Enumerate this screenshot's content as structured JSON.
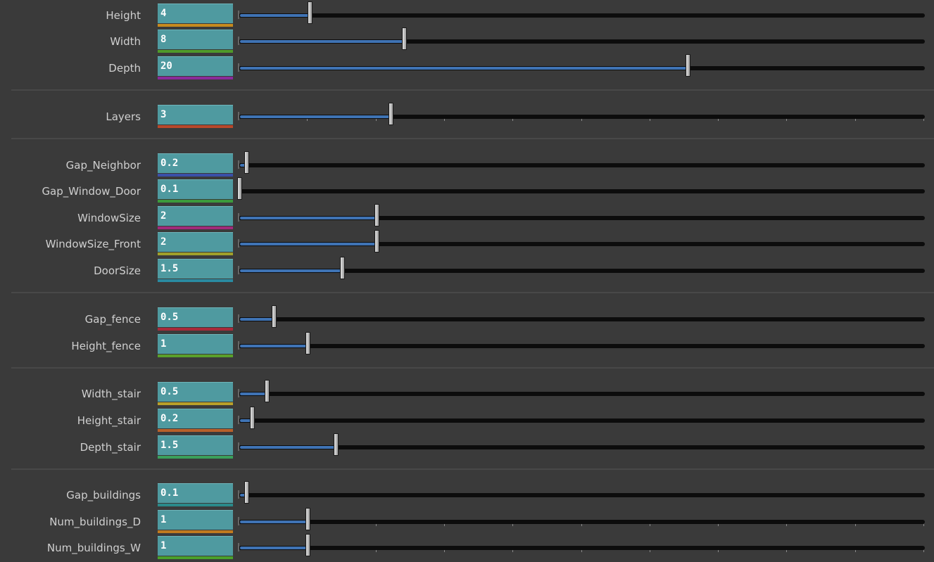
{
  "parameters": [
    {
      "label": "Height",
      "value": "4",
      "fraction": 0.105,
      "underline": "#c78a1e",
      "ticks": false
    },
    {
      "label": "Width",
      "value": "8",
      "fraction": 0.242,
      "underline": "#4f9a2a",
      "ticks": false
    },
    {
      "label": "Depth",
      "value": "20",
      "fraction": 0.655,
      "underline": "#8a2a9a",
      "ticks": false
    },
    {
      "label": "Layers",
      "value": "3",
      "fraction": 0.223,
      "underline": "#b8482a",
      "ticks": true
    },
    {
      "label": "Gap_Neighbor",
      "value": "0.2",
      "fraction": 0.012,
      "underline": "#3a4fa8",
      "ticks": false
    },
    {
      "label": "Gap_Window_Door",
      "value": "0.1",
      "fraction": 0.002,
      "underline": "#3c9a3c",
      "ticks": false
    },
    {
      "label": "WindowSize",
      "value": "2",
      "fraction": 0.202,
      "underline": "#a02a7a",
      "ticks": false
    },
    {
      "label": "WindowSize_Front",
      "value": "2",
      "fraction": 0.202,
      "underline": "#a0a02a",
      "ticks": false
    },
    {
      "label": "DoorSize",
      "value": "1.5",
      "fraction": 0.152,
      "underline": "#2a8aa0",
      "ticks": false
    },
    {
      "label": "Gap_fence",
      "value": "0.5",
      "fraction": 0.052,
      "underline": "#a82a3a",
      "ticks": false
    },
    {
      "label": "Height_fence",
      "value": "1",
      "fraction": 0.102,
      "underline": "#5aa02a",
      "ticks": false
    },
    {
      "label": "Width_stair",
      "value": "0.5",
      "fraction": 0.042,
      "underline": "#b8a02a",
      "ticks": false
    },
    {
      "label": "Height_stair",
      "value": "0.2",
      "fraction": 0.021,
      "underline": "#b8602a",
      "ticks": false
    },
    {
      "label": "Depth_stair",
      "value": "1.5",
      "fraction": 0.143,
      "underline": "#3aa05a",
      "ticks": false
    },
    {
      "label": "Gap_buildings",
      "value": "0.1",
      "fraction": 0.012,
      "underline": "#2a8a8a",
      "ticks": false
    },
    {
      "label": "Num_buildings_D",
      "value": "1",
      "fraction": 0.102,
      "underline": "#c07a1e",
      "ticks": true
    },
    {
      "label": "Num_buildings_W",
      "value": "1",
      "fraction": 0.102,
      "underline": "#4aa02a",
      "ticks": true
    }
  ]
}
